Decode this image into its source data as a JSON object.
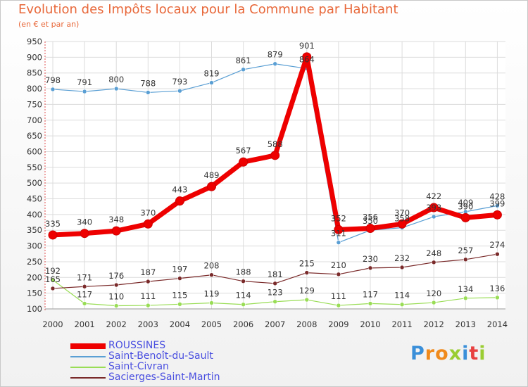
{
  "title": "Evolution des Impôts locaux pour la Commune par Habitant",
  "subtitle": "(en € et par an)",
  "brand": "Proxiti",
  "chart_data": {
    "type": "line",
    "title": "Evolution des Impôts locaux pour la Commune par Habitant",
    "ylabel": "(en € et par an)",
    "xlabel": "",
    "categories": [
      "2000",
      "2001",
      "2002",
      "2003",
      "2004",
      "2005",
      "2006",
      "2007",
      "2008",
      "2009",
      "2010",
      "2011",
      "2012",
      "2013",
      "2014"
    ],
    "ylim": [
      100,
      950
    ],
    "yticks": [
      100,
      150,
      200,
      250,
      300,
      350,
      400,
      450,
      500,
      550,
      600,
      650,
      700,
      750,
      800,
      850,
      900,
      950
    ],
    "grid": true,
    "legend_position": "bottom-left",
    "series": [
      {
        "name": "ROUSSINES",
        "color": "#ee0000",
        "width": 7,
        "marker": 6,
        "values": [
          335,
          340,
          348,
          370,
          443,
          489,
          567,
          588,
          901,
          352,
          356,
          370,
          422,
          390,
          399
        ],
        "labels": [
          "335",
          "340",
          "348",
          "370",
          "443",
          "489",
          "567",
          "588",
          "901",
          "352",
          "356",
          "370",
          "422",
          "390",
          "399"
        ]
      },
      {
        "name": "Saint-Benoît-du-Sault",
        "color": "#5a9fd4",
        "width": 1.2,
        "marker": 3,
        "values": [
          798,
          791,
          800,
          788,
          793,
          819,
          861,
          879,
          864,
          311,
          350,
          358,
          393,
          409,
          428
        ],
        "labels": [
          "798",
          "791",
          "800",
          "788",
          "793",
          "819",
          "861",
          "879",
          "864",
          "311",
          "350",
          "358",
          "393",
          "409",
          "428"
        ]
      },
      {
        "name": "Saint-Civran",
        "color": "#99dd55",
        "width": 1.2,
        "marker": 3,
        "values": [
          192,
          117,
          110,
          111,
          115,
          119,
          114,
          123,
          129,
          111,
          117,
          114,
          120,
          134,
          136
        ],
        "labels": [
          "192",
          "117",
          "110",
          "111",
          "115",
          "119",
          "114",
          "123",
          "129",
          "111",
          "117",
          "114",
          "120",
          "134",
          "136"
        ]
      },
      {
        "name": "Sacierges-Saint-Martin",
        "color": "#7a2a2a",
        "width": 1.2,
        "marker": 3,
        "values": [
          165,
          171,
          176,
          187,
          197,
          208,
          188,
          181,
          215,
          210,
          230,
          232,
          248,
          257,
          274
        ],
        "labels": [
          "165",
          "171",
          "176",
          "187",
          "197",
          "208",
          "188",
          "181",
          "215",
          "210",
          "230",
          "232",
          "248",
          "257",
          "274"
        ]
      }
    ]
  }
}
